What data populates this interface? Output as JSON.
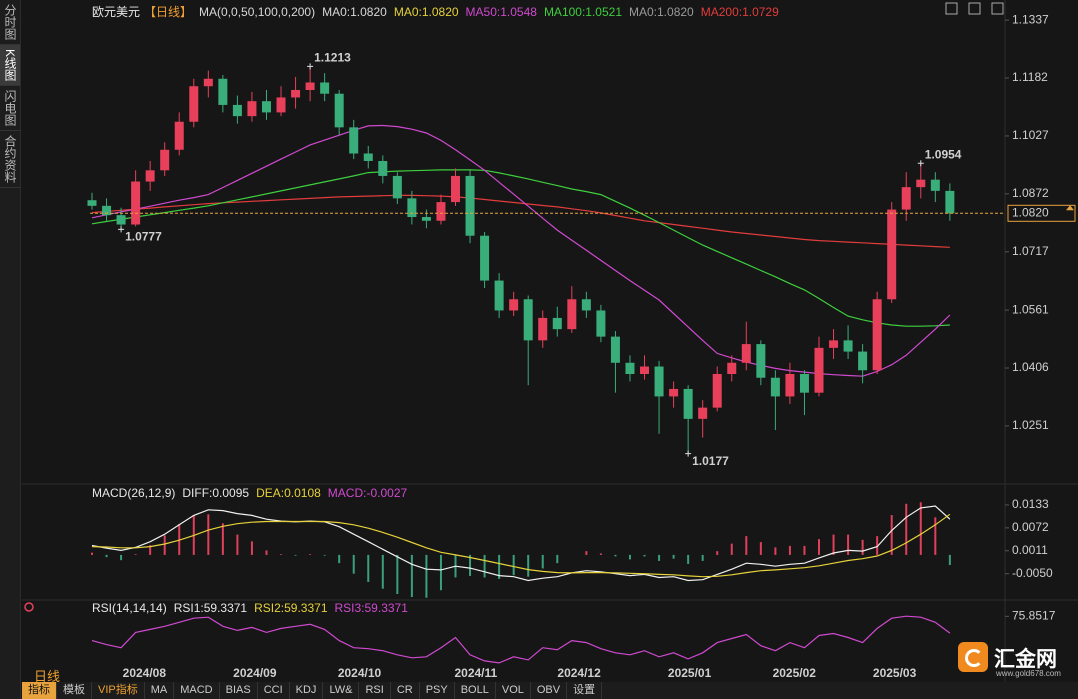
{
  "sidebar_tabs": [
    "分时图",
    "K线图",
    "闪电图",
    "合约资料"
  ],
  "chart_data": [
    {
      "type": "candlestick",
      "title": "欧元美元",
      "period": "【日线】",
      "legend": [
        {
          "text": "MA(0,0,50,100,0,200)",
          "color": "#d8d8d8"
        },
        {
          "text": "MA0:1.0820",
          "color": "#d8d8d8"
        },
        {
          "text": "MA0:1.0820",
          "color": "#e6d23a"
        },
        {
          "text": "MA50:1.0548",
          "color": "#d04ad0"
        },
        {
          "text": "MA100:1.0521",
          "color": "#3ecf3e"
        },
        {
          "text": "MA0:1.0820",
          "color": "#9a9a9a"
        },
        {
          "text": "MA200:1.0729",
          "color": "#e23c3c"
        }
      ],
      "up_color": "#e8405a",
      "down_color": "#3aae7a",
      "open": [
        1.0855,
        1.084,
        1.0815,
        1.079,
        1.0905,
        1.0935,
        1.099,
        1.1065,
        1.116,
        1.118,
        1.111,
        1.108,
        1.112,
        1.109,
        1.113,
        1.115,
        1.117,
        1.114,
        1.105,
        1.098,
        1.096,
        1.092,
        1.086,
        1.081,
        1.08,
        1.085,
        1.092,
        1.076,
        1.064,
        1.056,
        1.059,
        1.048,
        1.054,
        1.051,
        1.059,
        1.056,
        1.049,
        1.042,
        1.039,
        1.041,
        1.033,
        1.035,
        1.027,
        1.03,
        1.039,
        1.042,
        1.047,
        1.038,
        1.033,
        1.039,
        1.034,
        1.046,
        1.048,
        1.045,
        1.04,
        1.059,
        1.083,
        1.089,
        1.091,
        1.088
      ],
      "high": [
        1.0875,
        1.086,
        1.0835,
        1.0935,
        1.096,
        1.101,
        1.109,
        1.118,
        1.1202,
        1.119,
        1.1135,
        1.1145,
        1.115,
        1.116,
        1.1185,
        1.1213,
        1.1195,
        1.115,
        1.107,
        1.1,
        1.0975,
        1.093,
        1.088,
        1.083,
        1.087,
        1.094,
        1.0935,
        1.077,
        1.066,
        1.061,
        1.06,
        1.056,
        1.057,
        1.0625,
        1.061,
        1.0575,
        1.0505,
        1.044,
        1.044,
        1.0425,
        1.037,
        1.036,
        1.032,
        1.041,
        1.044,
        1.053,
        1.048,
        1.04,
        1.042,
        1.04,
        1.049,
        1.051,
        1.052,
        1.047,
        1.061,
        1.085,
        1.093,
        1.0954,
        1.093,
        1.09
      ],
      "low": [
        1.083,
        1.08,
        1.0777,
        1.0785,
        1.088,
        1.092,
        1.0975,
        1.105,
        1.113,
        1.109,
        1.106,
        1.1065,
        1.107,
        1.108,
        1.11,
        1.112,
        1.112,
        1.103,
        1.0965,
        1.094,
        1.09,
        1.0845,
        1.079,
        1.078,
        1.079,
        1.084,
        1.074,
        1.062,
        1.054,
        1.0545,
        1.036,
        1.046,
        1.049,
        1.05,
        1.054,
        1.0475,
        1.034,
        1.037,
        1.0375,
        1.023,
        1.03,
        1.0177,
        1.022,
        1.029,
        1.037,
        1.04,
        1.036,
        1.024,
        1.031,
        1.028,
        1.033,
        1.043,
        1.043,
        1.0365,
        1.039,
        1.058,
        1.08,
        1.086,
        1.085,
        1.08
      ],
      "close": [
        1.084,
        1.0815,
        1.079,
        1.0905,
        1.0935,
        1.099,
        1.1065,
        1.116,
        1.118,
        1.111,
        1.108,
        1.112,
        1.109,
        1.113,
        1.115,
        1.117,
        1.114,
        1.105,
        1.098,
        1.096,
        1.092,
        1.086,
        1.081,
        1.08,
        1.085,
        1.092,
        1.076,
        1.064,
        1.056,
        1.059,
        1.048,
        1.054,
        1.051,
        1.059,
        1.056,
        1.049,
        1.042,
        1.039,
        1.041,
        1.033,
        1.035,
        1.027,
        1.03,
        1.039,
        1.042,
        1.047,
        1.038,
        1.033,
        1.039,
        1.034,
        1.046,
        1.048,
        1.045,
        1.04,
        1.059,
        1.083,
        1.089,
        1.091,
        1.088,
        1.082
      ],
      "series": [
        {
          "color": "#e23c3c",
          "values": [
            1.0822,
            1.0825,
            1.0828,
            1.0831,
            1.0834,
            1.0837,
            1.084,
            1.0843,
            1.0846,
            1.0848,
            1.085,
            1.0852,
            1.0854,
            1.0856,
            1.0858,
            1.086,
            1.0862,
            1.0864,
            1.0865,
            1.0866,
            1.0867,
            1.0868,
            1.0868,
            1.0867,
            1.0866,
            1.0864,
            1.0861,
            1.0857,
            1.0853,
            1.0849,
            1.0845,
            1.0841,
            1.0837,
            1.0832,
            1.0827,
            1.0821,
            1.0814,
            1.0807,
            1.08,
            1.0795,
            1.079,
            1.0785,
            1.078,
            1.0775,
            1.077,
            1.0766,
            1.0762,
            1.0758,
            1.0754,
            1.075,
            1.0747,
            1.0745,
            1.0743,
            1.0741,
            1.0739,
            1.0737,
            1.0735,
            1.0733,
            1.0731,
            1.0729
          ]
        },
        {
          "color": "#3ecf3e",
          "values": [
            1.0792,
            1.0798,
            1.0804,
            1.081,
            1.0816,
            1.0822,
            1.0828,
            1.0834,
            1.084,
            1.0848,
            1.0856,
            1.0864,
            1.0872,
            1.088,
            1.0888,
            1.0896,
            1.0904,
            1.0912,
            1.092,
            1.0929,
            1.0931,
            1.0933,
            1.0934,
            1.0935,
            1.0936,
            1.0936,
            1.0936,
            1.0935,
            1.0928,
            1.092,
            1.0912,
            1.0903,
            1.0894,
            1.0885,
            1.0878,
            1.087,
            1.0852,
            1.0834,
            1.0815,
            1.0795,
            1.0775,
            1.0755,
            1.0735,
            1.0718,
            1.0701,
            1.0684,
            1.0667,
            1.065,
            1.0632,
            1.0615,
            1.0592,
            1.0568,
            1.0545,
            1.0535,
            1.0527,
            1.0521,
            1.0518,
            1.0518,
            1.0519,
            1.0521
          ]
        },
        {
          "color": "#d04ad0",
          "values": [
            1.0808,
            1.0816,
            1.0824,
            1.0831,
            1.0839,
            1.0847,
            1.0855,
            1.0862,
            1.087,
            1.0889,
            1.0908,
            1.0927,
            1.0946,
            1.0965,
            1.0984,
            1.1003,
            1.1016,
            1.1029,
            1.1042,
            1.1054,
            1.1055,
            1.1052,
            1.1045,
            1.1035,
            1.1015,
            1.099,
            1.0963,
            1.0935,
            1.0903,
            1.0871,
            1.0839,
            1.0807,
            1.0775,
            1.0748,
            1.0721,
            1.0694,
            1.0667,
            1.064,
            1.0614,
            1.0588,
            1.0552,
            1.0516,
            1.048,
            1.0445,
            1.0433,
            1.0422,
            1.0413,
            1.0405,
            1.0399,
            1.0395,
            1.0391,
            1.0388,
            1.0386,
            1.0384,
            1.0397,
            1.0415,
            1.044,
            1.0475,
            1.051,
            1.0548
          ]
        }
      ],
      "ylim": [
        1.0101,
        1.1364
      ],
      "yticks": [
        1.1337,
        1.1182,
        1.1027,
        1.0872,
        1.0717,
        1.0561,
        1.0406,
        1.0251
      ],
      "current": {
        "value": 1.082,
        "label": "1.0820"
      },
      "current_color": "#e8a33d",
      "high_labels": [
        1.1213,
        1.0954
      ],
      "high_label_color": "#ea4d62",
      "low_labels": [
        1.0777,
        1.0177
      ],
      "low_label_color": "#5cc892",
      "xticks": [
        {
          "value": 3.6,
          "label": "2024/08"
        },
        {
          "value": 11.2,
          "label": "2024/09"
        },
        {
          "value": 18.4,
          "label": "2024/10"
        },
        {
          "value": 26.4,
          "label": "2024/11"
        },
        {
          "value": 33.5,
          "label": "2024/12"
        },
        {
          "value": 41.1,
          "label": "2025/01"
        },
        {
          "value": 48.3,
          "label": "2025/02"
        },
        {
          "value": 55.2,
          "label": "2025/03"
        }
      ]
    },
    {
      "type": "macd",
      "title": "MACD(26,12,9)",
      "legend": [
        {
          "text": "DIFF:0.0095",
          "color": "#e8e8e8"
        },
        {
          "text": "DEA:0.0108",
          "color": "#e6d23a"
        },
        {
          "text": "MACD:-0.0027",
          "color": "#d04ad0"
        }
      ],
      "up_color": "#e0405a",
      "down_color": "#3aa07a",
      "series": [
        {
          "color": "#f0f0f0",
          "values": [
            0.0025,
            0.0018,
            0.0012,
            0.002,
            0.0035,
            0.0055,
            0.008,
            0.0105,
            0.012,
            0.0118,
            0.011,
            0.0105,
            0.0095,
            0.009,
            0.0088,
            0.009,
            0.0088,
            0.0075,
            0.0055,
            0.0035,
            0.0015,
            -0.0005,
            -0.0025,
            -0.0038,
            -0.004,
            -0.003,
            -0.0035,
            -0.0045,
            -0.0055,
            -0.0058,
            -0.0068,
            -0.0062,
            -0.0058,
            -0.0048,
            -0.0042,
            -0.0045,
            -0.005,
            -0.0055,
            -0.0052,
            -0.006,
            -0.0058,
            -0.0068,
            -0.0066,
            -0.0052,
            -0.0038,
            -0.0022,
            -0.0025,
            -0.003,
            -0.0025,
            -0.0022,
            -0.0008,
            0.0005,
            0.0012,
            0.001,
            0.0022,
            0.0065,
            0.01,
            0.0125,
            0.013,
            0.0095
          ]
        },
        {
          "color": "#e6d23a",
          "values": [
            0.0022,
            0.0021,
            0.0019,
            0.0019,
            0.0022,
            0.0029,
            0.0039,
            0.0052,
            0.0066,
            0.0076,
            0.0083,
            0.0087,
            0.0089,
            0.0089,
            0.0089,
            0.0089,
            0.0089,
            0.0086,
            0.008,
            0.0071,
            0.006,
            0.0047,
            0.0033,
            0.0019,
            0.0007,
            0.0,
            -0.0007,
            -0.0015,
            -0.0023,
            -0.0031,
            -0.0039,
            -0.0044,
            -0.0047,
            -0.0048,
            -0.0047,
            -0.0047,
            -0.0048,
            -0.0049,
            -0.005,
            -0.0052,
            -0.0053,
            -0.0056,
            -0.0058,
            -0.0057,
            -0.0053,
            -0.0047,
            -0.0042,
            -0.004,
            -0.0037,
            -0.0034,
            -0.0029,
            -0.0022,
            -0.0015,
            -0.001,
            -0.0003,
            0.0012,
            0.0032,
            0.0055,
            0.008,
            0.0108
          ]
        }
      ],
      "bars": [
        0.0006,
        -0.0006,
        -0.0014,
        0.0002,
        0.0026,
        0.0052,
        0.0082,
        0.0106,
        0.0108,
        0.0084,
        0.0054,
        0.0036,
        0.0012,
        0.0002,
        -0.0002,
        0.0002,
        -0.0002,
        -0.0022,
        -0.005,
        -0.0072,
        -0.009,
        -0.0104,
        -0.0112,
        -0.0114,
        -0.0094,
        -0.006,
        -0.0056,
        -0.006,
        -0.0064,
        -0.0054,
        -0.0058,
        -0.0036,
        -0.0022,
        0.0,
        0.001,
        0.0004,
        -0.0004,
        -0.0012,
        -0.0004,
        -0.0016,
        -0.001,
        -0.0024,
        -0.0016,
        0.001,
        0.003,
        0.005,
        0.0034,
        0.002,
        0.0024,
        0.0024,
        0.0042,
        0.0054,
        0.0054,
        0.004,
        0.005,
        0.0106,
        0.0136,
        0.014,
        0.01,
        -0.0027
      ],
      "ylim": [
        -0.012,
        0.0186
      ],
      "yticks": [
        0.0133,
        0.0072,
        0.0011,
        {
          "value": -0.005,
          "label": "-0.0050"
        }
      ]
    },
    {
      "type": "rsi",
      "title": "RSI(14,14,14)",
      "legend": [
        {
          "text": "RSI1:59.3371",
          "color": "#e8e8e8"
        },
        {
          "text": "RSI2:59.3371",
          "color": "#e6d23a"
        },
        {
          "text": "RSI3:59.3371",
          "color": "#d04ad0"
        }
      ],
      "series": [
        {
          "color": "#d04ad0",
          "values": [
            52,
            48,
            45,
            60,
            63,
            66,
            70,
            74,
            75,
            66,
            62,
            65,
            60,
            64,
            66,
            68,
            63,
            52,
            45,
            44,
            42,
            38,
            35,
            36,
            45,
            55,
            38,
            32,
            30,
            36,
            33,
            45,
            43,
            52,
            50,
            44,
            40,
            38,
            42,
            36,
            40,
            34,
            40,
            50,
            54,
            58,
            47,
            42,
            50,
            45,
            57,
            59,
            55,
            50,
            64,
            74,
            76,
            75,
            70,
            59.3371
          ]
        }
      ],
      "ylim": [
        25,
        88
      ],
      "yticks": [
        75.8517
      ]
    }
  ],
  "footer": {
    "period": "日线",
    "tabs": [
      "指标",
      "模板",
      "VIP指标",
      "MA",
      "MACD",
      "BIAS",
      "CCI",
      "KDJ",
      "LW&",
      "RSI",
      "CR",
      "PSY",
      "BOLL",
      "VOL",
      "OBV",
      "设置"
    ]
  },
  "logo": {
    "name": "汇金网",
    "url": "www.gold678.com"
  }
}
